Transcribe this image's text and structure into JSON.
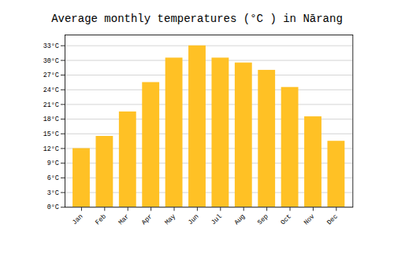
{
  "chart_data": {
    "type": "bar",
    "title": "Average monthly temperatures (°C ) in Nārang",
    "categories": [
      "Jan",
      "Feb",
      "Mar",
      "Apr",
      "May",
      "Jun",
      "Jul",
      "Aug",
      "Sep",
      "Oct",
      "Nov",
      "Dec"
    ],
    "values": [
      12,
      14.5,
      19.5,
      25.5,
      30.5,
      33,
      30.5,
      29.5,
      28,
      24.5,
      18.5,
      13.5
    ],
    "color": "#FFC125",
    "ylim": [
      0,
      35.2
    ],
    "yticks": [
      {
        "value": 0,
        "label": "0°C"
      },
      {
        "value": 3,
        "label": "3°C"
      },
      {
        "value": 6,
        "label": "6°C"
      },
      {
        "value": 9,
        "label": "9°C"
      },
      {
        "value": 12,
        "label": "12°C"
      },
      {
        "value": 15,
        "label": "15°C"
      },
      {
        "value": 18,
        "label": "18°C"
      },
      {
        "value": 21,
        "label": "21°C"
      },
      {
        "value": 24,
        "label": "24°C"
      },
      {
        "value": 27,
        "label": "27°C"
      },
      {
        "value": 30,
        "label": "30°C"
      },
      {
        "value": 33,
        "label": "33°C"
      }
    ],
    "grid": true
  }
}
